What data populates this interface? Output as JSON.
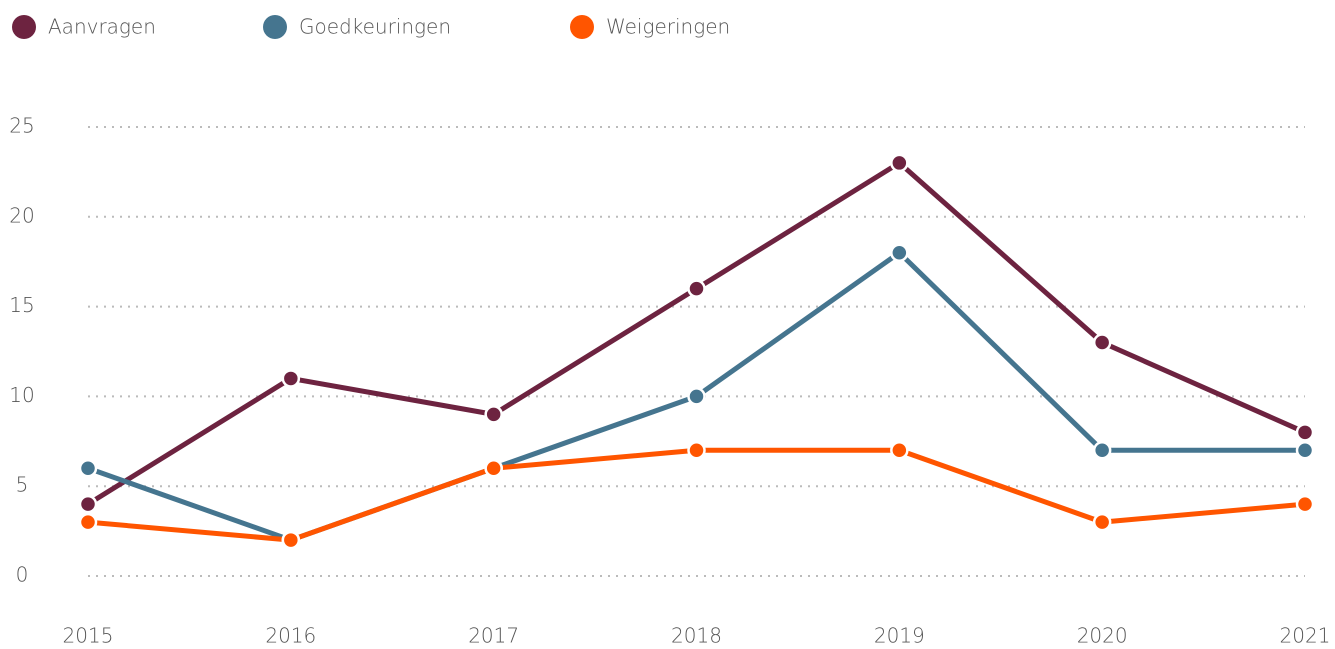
{
  "chart_data": {
    "type": "line",
    "categories": [
      "2015",
      "2016",
      "2017",
      "2018",
      "2019",
      "2020",
      "2021"
    ],
    "series": [
      {
        "name": "Aanvragen",
        "color": "#6d2340",
        "values": [
          4,
          11,
          9,
          16,
          23,
          13,
          8
        ]
      },
      {
        "name": "Goedkeuringen",
        "color": "#45758f",
        "values": [
          6,
          2,
          6,
          10,
          18,
          7,
          7
        ]
      },
      {
        "name": "Weigeringen",
        "color": "#ff5500",
        "values": [
          3,
          2,
          6,
          7,
          7,
          3,
          4
        ]
      }
    ],
    "ylim": [
      0,
      25
    ],
    "yticks": [
      0,
      5,
      10,
      15,
      20,
      25
    ],
    "grid": true,
    "legend": "top"
  }
}
